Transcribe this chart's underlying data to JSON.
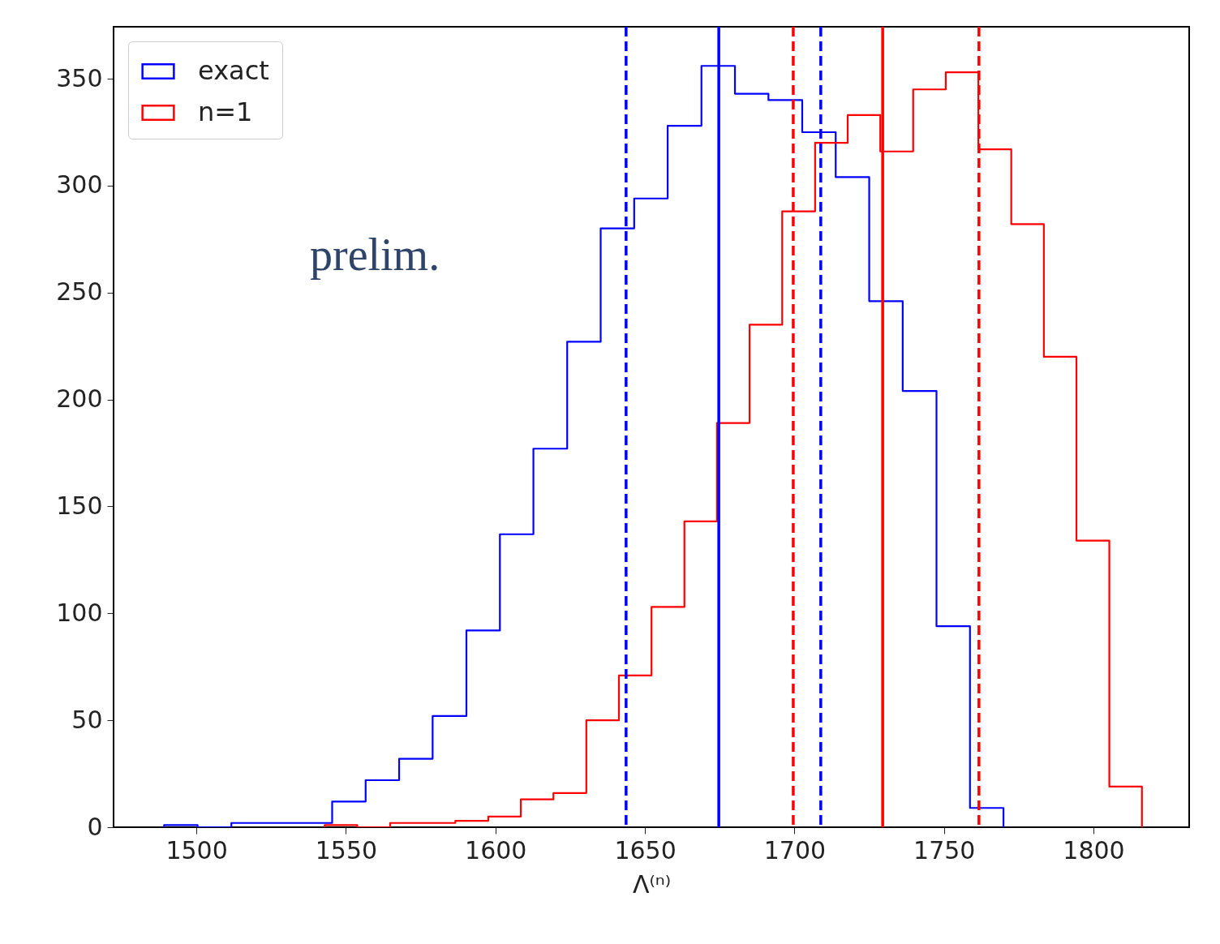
{
  "chart_data": {
    "type": "step",
    "xlabel": "Λ⁽ⁿ⁾",
    "annotations": [
      "prelim."
    ],
    "xlim": [
      1472.3,
      1832
    ],
    "ylim": [
      0,
      374.3
    ],
    "xticks": [
      1500,
      1550,
      1600,
      1650,
      1700,
      1750,
      1800
    ],
    "yticks": [
      0,
      50,
      100,
      150,
      200,
      250,
      300,
      350
    ],
    "grid": false,
    "legend": "top left",
    "marker": "none",
    "series": [
      {
        "name": "exact",
        "color": "#0000ff",
        "x": [
          1489.2,
          1489.2,
          1500.4,
          1511.7,
          1522.9,
          1534.1,
          1545.4,
          1556.6,
          1567.8,
          1579.0,
          1590.3,
          1601.5,
          1612.7,
          1624.0,
          1635.2,
          1646.4,
          1657.6,
          1668.9,
          1680.1,
          1691.3,
          1702.6,
          1713.8,
          1725.0,
          1736.2,
          1747.5,
          1758.7,
          1769.9,
          1769.9
        ],
        "values": [
          0,
          1,
          0,
          2,
          2,
          2,
          12,
          22,
          32,
          52,
          92,
          137,
          177,
          227,
          280,
          294,
          328,
          356,
          343,
          340,
          325,
          304,
          246,
          204,
          94,
          9,
          9,
          0
        ]
      },
      {
        "name": "n=1",
        "color": "#ff0000",
        "x": [
          1542.9,
          1542.9,
          1553.8,
          1564.8,
          1575.7,
          1586.6,
          1597.6,
          1608.5,
          1619.4,
          1630.4,
          1641.3,
          1652.2,
          1663.2,
          1674.1,
          1685.0,
          1695.9,
          1706.9,
          1717.8,
          1728.7,
          1739.7,
          1750.6,
          1761.5,
          1772.5,
          1783.4,
          1794.3,
          1805.3,
          1816.2,
          1816.2
        ],
        "values": [
          0,
          1,
          0,
          2,
          2,
          3,
          5,
          13,
          16,
          50,
          71,
          103,
          143,
          189,
          235,
          288,
          320,
          333,
          316,
          345,
          353,
          317,
          282,
          220,
          134,
          19,
          19,
          0
        ]
      }
    ],
    "ref_lines": [
      {
        "axis": "x",
        "value": 1643.7,
        "color": "#0000ff",
        "line_style": "dashed"
      },
      {
        "axis": "x",
        "value": 1674.7,
        "color": "#0000ff",
        "line_style": "solid"
      },
      {
        "axis": "x",
        "value": 1708.8,
        "color": "#0000ff",
        "line_style": "dashed"
      },
      {
        "axis": "x",
        "value": 1699.6,
        "color": "#ff0000",
        "line_style": "dashed"
      },
      {
        "axis": "x",
        "value": 1729.5,
        "color": "#ff0000",
        "line_style": "solid"
      },
      {
        "axis": "x",
        "value": 1761.7,
        "color": "#ff0000",
        "line_style": "dashed"
      }
    ]
  }
}
